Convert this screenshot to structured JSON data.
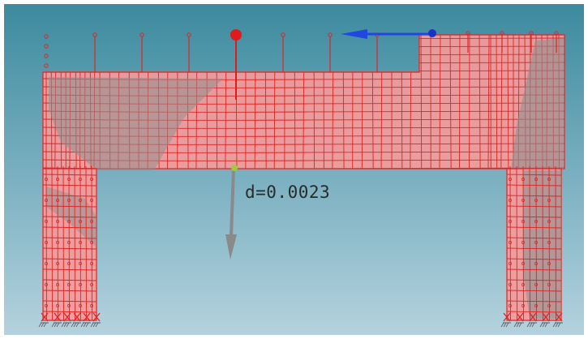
{
  "viewport": {
    "background_top": "#3c8a9e",
    "background_bottom": "#b4d2de"
  },
  "colors": {
    "mesh_fill": "#f59a9a",
    "mesh_line": "#e02424",
    "damage_zone": "#8f8f8f",
    "displacement_arrow": "#8a8a8a",
    "marker_node": "#9ccc3c",
    "load_point": "#e01b1b",
    "lateral_load": "#2048e0"
  },
  "annotation": {
    "displacement_label": "d=0.0023"
  },
  "icons": {
    "support_glyph": "fixed-support-icon",
    "load_glyph": "point-load-icon",
    "lateral_glyph": "lateral-load-arrow-icon",
    "displacement_glyph": "displacement-arrow-icon"
  }
}
